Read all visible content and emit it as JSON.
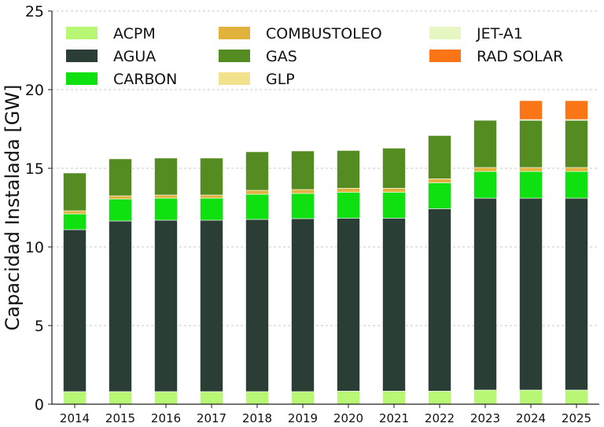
{
  "chart_data": {
    "type": "bar",
    "stacked": true,
    "title": "",
    "xlabel": "",
    "ylabel": "Capacidad Instalada [GW]",
    "ylim": [
      0,
      25
    ],
    "yticks": [
      0,
      5,
      10,
      15,
      20,
      25
    ],
    "grid": "horizontal dashed",
    "legend_position": "top-left",
    "categories": [
      "2014",
      "2015",
      "2016",
      "2017",
      "2018",
      "2019",
      "2020",
      "2021",
      "2022",
      "2023",
      "2024",
      "2025"
    ],
    "series": [
      {
        "name": "ACPM",
        "color": "#b8f773",
        "values": [
          0.8,
          0.8,
          0.8,
          0.8,
          0.8,
          0.8,
          0.83,
          0.83,
          0.83,
          0.9,
          0.9,
          0.9
        ]
      },
      {
        "name": "AGUA",
        "color": "#2b3e35",
        "values": [
          10.3,
          10.85,
          10.9,
          10.9,
          10.95,
          11.0,
          11.0,
          11.0,
          11.6,
          12.2,
          12.2,
          12.2
        ]
      },
      {
        "name": "CARBON",
        "color": "#0fe00f",
        "values": [
          1.0,
          1.4,
          1.4,
          1.4,
          1.6,
          1.6,
          1.65,
          1.65,
          1.65,
          1.7,
          1.7,
          1.7
        ]
      },
      {
        "name": "COMBUSTOLEO",
        "color": "#e1b33d",
        "values": [
          0.2,
          0.2,
          0.2,
          0.2,
          0.25,
          0.25,
          0.25,
          0.25,
          0.25,
          0.25,
          0.25,
          0.25
        ]
      },
      {
        "name": "GAS",
        "color": "#558c22",
        "values": [
          2.4,
          2.35,
          2.35,
          2.35,
          2.45,
          2.45,
          2.4,
          2.55,
          2.75,
          3.0,
          3.0,
          3.0
        ]
      },
      {
        "name": "GLP",
        "color": "#f2e28e",
        "values": [
          0,
          0,
          0,
          0,
          0,
          0,
          0,
          0,
          0,
          0,
          0.05,
          0.05
        ]
      },
      {
        "name": "JET-A1",
        "color": "#e6f7c3",
        "values": [
          0,
          0,
          0,
          0,
          0,
          0,
          0,
          0,
          0,
          0,
          0,
          0
        ]
      },
      {
        "name": "RAD SOLAR",
        "color": "#f97516",
        "values": [
          0,
          0,
          0,
          0,
          0,
          0,
          0,
          0,
          0,
          0,
          1.2,
          1.2
        ]
      }
    ],
    "gridline_color": "#c8c8c8",
    "axis_color": "#222222"
  }
}
